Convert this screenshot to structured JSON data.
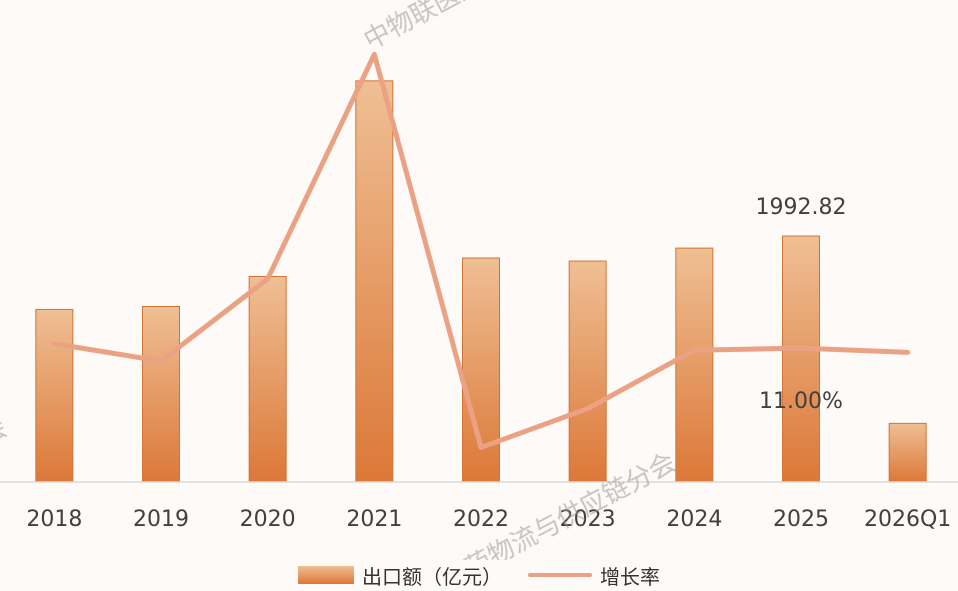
{
  "chart_data": {
    "type": "bar",
    "categories": [
      "2018",
      "2019",
      "2020",
      "2021",
      "2022",
      "2023",
      "2024",
      "2025",
      "2026Q1"
    ],
    "series": [
      {
        "name": "出口额（亿元）",
        "type": "bar",
        "axis": "left",
        "values": [
          1398,
          1422,
          1665,
          3250,
          1815,
          1790,
          1895,
          1992.82,
          475
        ]
      },
      {
        "name": "增长率",
        "type": "line",
        "axis": "right",
        "values": [
          12.0,
          8.0,
          27.0,
          79.0,
          -12.0,
          -3.0,
          10.5,
          11.0,
          10.0
        ]
      }
    ],
    "data_labels": [
      {
        "series": 0,
        "category": "2025",
        "text": "1992.82"
      },
      {
        "series": 1,
        "category": "2025",
        "text": "11.00%"
      }
    ],
    "y_left": {
      "min": 0,
      "max": 3500
    },
    "y_right": {
      "min": -20,
      "max": 80
    },
    "legend_position": "bottom",
    "grid": false,
    "colors": {
      "bar_top": "#efbf94",
      "bar_bottom": "#dc7838",
      "line": "#eba284",
      "axis": "#d9d9d9"
    }
  },
  "watermarks": [
    "中物联医药物流与供应链分会",
    "医药物流与供应链分会",
    "链分会"
  ]
}
